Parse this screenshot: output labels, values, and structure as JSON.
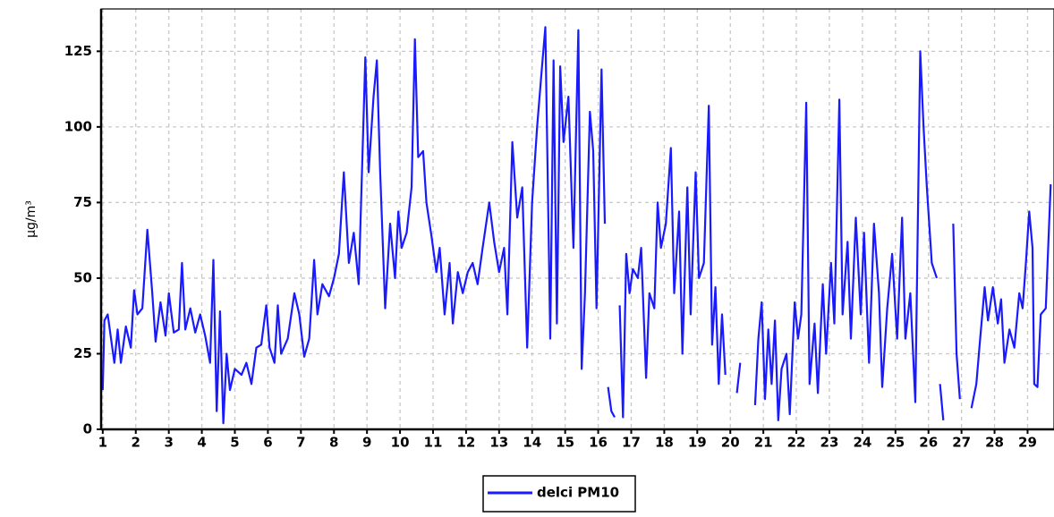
{
  "chart_data": {
    "type": "line",
    "y_label": "µg/m³",
    "xlim": [
      0.95,
      29.8
    ],
    "xticks": [
      1,
      2,
      3,
      4,
      5,
      6,
      7,
      8,
      9,
      10,
      11,
      12,
      13,
      14,
      15,
      16,
      17,
      18,
      19,
      20,
      21,
      22,
      23,
      24,
      25,
      26,
      27,
      28,
      29
    ],
    "ylim": [
      0,
      139
    ],
    "yticks": [
      0,
      25,
      50,
      75,
      100,
      125
    ],
    "grid": true,
    "legend": "bottom",
    "x": [
      1.0,
      1.05,
      1.15,
      1.25,
      1.35,
      1.45,
      1.55,
      1.7,
      1.85,
      1.95,
      2.05,
      2.2,
      2.35,
      2.5,
      2.6,
      2.75,
      2.9,
      3.0,
      3.15,
      3.3,
      3.4,
      3.5,
      3.65,
      3.8,
      3.95,
      4.1,
      4.25,
      4.35,
      4.45,
      4.55,
      4.65,
      4.75,
      4.85,
      5.0,
      5.2,
      5.35,
      5.5,
      5.65,
      5.8,
      5.95,
      6.05,
      6.2,
      6.3,
      6.4,
      6.6,
      6.8,
      6.95,
      7.1,
      7.25,
      7.4,
      7.5,
      7.65,
      7.85,
      8.0,
      8.15,
      8.3,
      8.45,
      8.6,
      8.75,
      8.95,
      9.05,
      9.2,
      9.3,
      9.4,
      9.55,
      9.7,
      9.85,
      9.95,
      10.05,
      10.2,
      10.35,
      10.45,
      10.55,
      10.7,
      10.8,
      10.95,
      11.1,
      11.2,
      11.35,
      11.5,
      11.6,
      11.75,
      11.9,
      12.05,
      12.2,
      12.35,
      12.5,
      12.7,
      12.85,
      13.0,
      13.15,
      13.25,
      13.4,
      13.55,
      13.7,
      13.85,
      14.0,
      14.15,
      14.3,
      14.4,
      14.55,
      14.65,
      14.75,
      14.85,
      14.95,
      15.1,
      15.25,
      15.4,
      15.5,
      15.6,
      15.75,
      15.85,
      15.95,
      16.1,
      16.2,
      16.25,
      16.3,
      16.4,
      16.5,
      16.58,
      16.65,
      16.75,
      16.85,
      16.95,
      17.05,
      17.2,
      17.3,
      17.45,
      17.55,
      17.7,
      17.8,
      17.9,
      18.05,
      18.2,
      18.3,
      18.45,
      18.55,
      18.7,
      18.8,
      18.95,
      19.05,
      19.2,
      19.35,
      19.45,
      19.55,
      19.65,
      19.75,
      19.85,
      20.0,
      20.2,
      20.3,
      20.5,
      20.75,
      20.85,
      20.95,
      21.05,
      21.15,
      21.25,
      21.35,
      21.45,
      21.55,
      21.7,
      21.8,
      21.95,
      22.05,
      22.15,
      22.3,
      22.4,
      22.55,
      22.65,
      22.8,
      22.9,
      23.05,
      23.15,
      23.3,
      23.4,
      23.55,
      23.65,
      23.8,
      23.95,
      24.05,
      24.2,
      24.35,
      24.5,
      24.6,
      24.75,
      24.9,
      25.05,
      25.2,
      25.3,
      25.45,
      25.6,
      25.75,
      25.85,
      25.95,
      26.1,
      26.25,
      26.3,
      26.35,
      26.45,
      26.6,
      26.75,
      26.85,
      26.95,
      27.1,
      27.3,
      27.45,
      27.55,
      27.7,
      27.8,
      27.95,
      28.1,
      28.2,
      28.3,
      28.45,
      28.6,
      28.75,
      28.85,
      28.95,
      29.05,
      29.15,
      29.2,
      29.3,
      29.4,
      29.55,
      29.7
    ],
    "series": [
      {
        "name": "delci PM10",
        "color": "#1a1aff",
        "values": [
          13,
          36,
          38,
          30,
          22,
          33,
          22,
          34,
          27,
          46,
          38,
          40,
          66,
          45,
          29,
          42,
          31,
          45,
          32,
          33,
          55,
          33,
          40,
          32,
          38,
          31,
          22,
          56,
          6,
          39,
          2,
          25,
          13,
          20,
          18,
          22,
          15,
          27,
          28,
          41,
          27,
          22,
          41,
          25,
          30,
          45,
          38,
          24,
          30,
          56,
          38,
          48,
          44,
          50,
          58,
          85,
          55,
          65,
          48,
          123,
          85,
          110,
          122,
          85,
          40,
          68,
          50,
          72,
          60,
          65,
          80,
          129,
          90,
          92,
          75,
          64,
          52,
          60,
          38,
          55,
          35,
          52,
          45,
          52,
          55,
          48,
          60,
          75,
          62,
          52,
          60,
          38,
          95,
          70,
          80,
          27,
          75,
          100,
          120,
          133,
          30,
          122,
          35,
          120,
          95,
          110,
          60,
          132,
          20,
          45,
          105,
          92,
          40,
          119,
          68,
          null,
          14,
          6,
          4,
          null,
          41,
          4,
          58,
          45,
          53,
          50,
          60,
          17,
          45,
          40,
          75,
          60,
          68,
          93,
          45,
          72,
          25,
          80,
          38,
          85,
          50,
          55,
          107,
          28,
          47,
          15,
          38,
          18,
          null,
          12,
          22,
          null,
          8,
          30,
          42,
          10,
          33,
          15,
          36,
          3,
          20,
          25,
          5,
          42,
          30,
          38,
          108,
          15,
          35,
          12,
          48,
          25,
          55,
          35,
          109,
          38,
          62,
          30,
          70,
          38,
          65,
          22,
          68,
          45,
          14,
          40,
          58,
          30,
          70,
          30,
          45,
          9,
          125,
          100,
          80,
          55,
          50,
          null,
          15,
          3,
          null,
          68,
          25,
          10,
          null,
          7,
          15,
          28,
          47,
          36,
          47,
          35,
          43,
          22,
          33,
          27,
          45,
          40,
          55,
          72,
          60,
          15,
          14,
          38,
          40,
          81
        ]
      }
    ]
  }
}
